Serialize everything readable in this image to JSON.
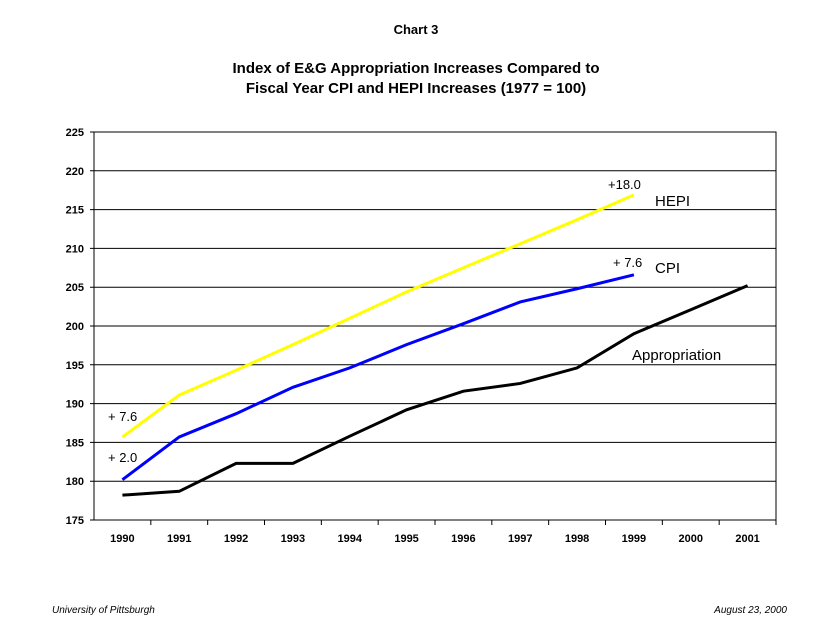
{
  "chart_data": {
    "type": "line",
    "heading": "Chart 3",
    "title": "Index of E&G Appropriation Increases Compared to",
    "subtitle": "Fiscal Year CPI and HEPI Increases (1977 = 100)",
    "xlabel": "",
    "ylabel": "",
    "categories": [
      "1990",
      "1991",
      "1992",
      "1993",
      "1994",
      "1995",
      "1996",
      "1997",
      "1998",
      "1999",
      "2000",
      "2001"
    ],
    "ylim": [
      175,
      225
    ],
    "yticks": [
      175,
      180,
      185,
      190,
      195,
      200,
      205,
      210,
      215,
      220,
      225
    ],
    "grid": true,
    "series": [
      {
        "name": "HEPI",
        "color": "#ffff00",
        "values": [
          185.7,
          191.1,
          194.3,
          197.6,
          201.0,
          204.4,
          207.5,
          210.6,
          213.7,
          216.9,
          null,
          null
        ]
      },
      {
        "name": "CPI",
        "color": "#0000ff",
        "values": [
          180.2,
          185.7,
          188.7,
          192.1,
          194.6,
          197.6,
          200.3,
          203.1,
          204.8,
          206.6,
          null,
          null
        ]
      },
      {
        "name": "Appropriation",
        "color": "#000000",
        "values": [
          178.2,
          178.7,
          182.3,
          182.3,
          185.8,
          189.2,
          191.6,
          192.6,
          194.6,
          199.0,
          202.1,
          205.2
        ]
      }
    ],
    "annotations": {
      "hepi_start": "+ 7.6",
      "cpi_start": "+ 2.0",
      "hepi_end": "+18.0",
      "cpi_end": "+ 7.6"
    }
  },
  "footer": {
    "left": "University of Pittsburgh",
    "right": "August 23, 2000"
  }
}
